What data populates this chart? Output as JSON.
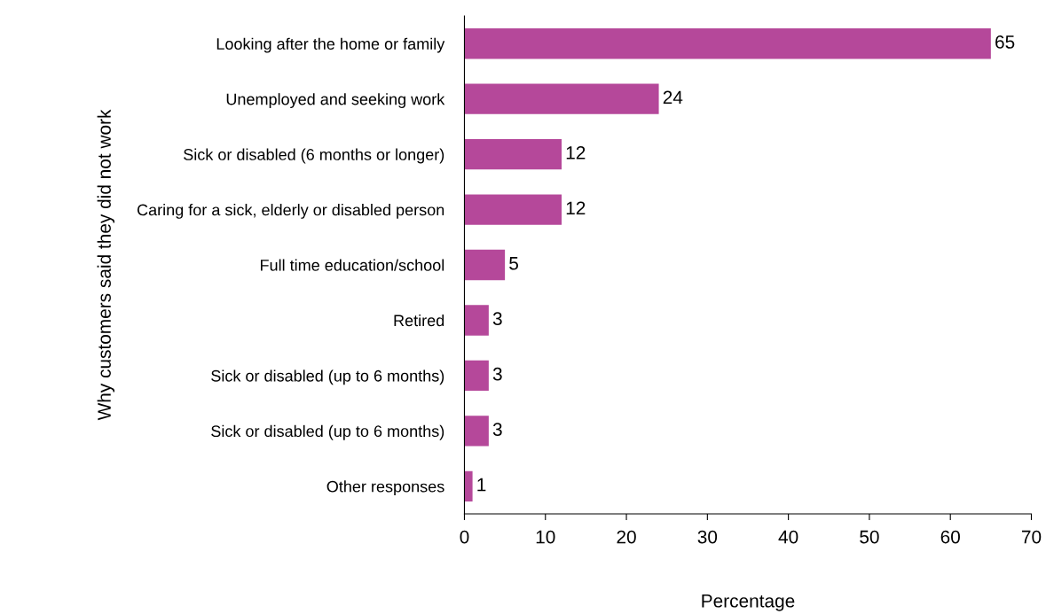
{
  "chart_data": {
    "type": "bar",
    "orientation": "horizontal",
    "xlabel": "Percentage",
    "ylabel": "Why customers said they did not work",
    "categories": [
      "Looking after the home or family",
      "Unemployed and seeking work",
      "Sick or disabled (6 months or longer)",
      "Caring for a sick, elderly or disabled person",
      "Full time education/school",
      "Retired",
      "Sick or disabled (up to 6 months)",
      "Sick or disabled (up to 6 months)",
      "Other responses"
    ],
    "values": [
      65,
      24,
      12,
      12,
      5,
      3,
      3,
      3,
      1
    ],
    "color": "#b5489a",
    "xlim": [
      0,
      70
    ],
    "xticks": [
      0,
      10,
      20,
      30,
      40,
      50,
      60,
      70
    ],
    "data_labels": true,
    "grid": false,
    "legend": false
  }
}
